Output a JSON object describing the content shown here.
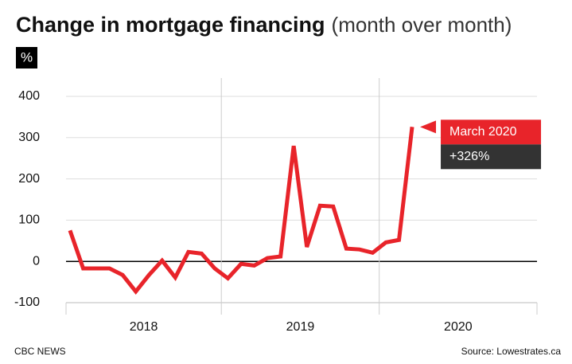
{
  "chart_data": {
    "type": "line",
    "title": "Change in mortgage financing",
    "subtitle": "(month over month)",
    "y_unit": "%",
    "categories": [
      null,
      null,
      null,
      null,
      null,
      null,
      null,
      null,
      null,
      null,
      null,
      null,
      null,
      null,
      null,
      null,
      null,
      null,
      null,
      null,
      null,
      null,
      null,
      null,
      null,
      null,
      null
    ],
    "x_groups": [
      "2018",
      "2019",
      "2020"
    ],
    "series": [
      {
        "name": "Change",
        "color": "#e8242a",
        "values": [
          75,
          -17,
          -17,
          -17,
          -33,
          -73,
          -33,
          2,
          -39,
          23,
          19,
          -17,
          -41,
          -6,
          -10,
          8,
          12,
          280,
          35,
          135,
          133,
          31,
          29,
          21,
          46,
          52,
          326
        ],
        "value_labels": [
          null,
          null,
          null,
          null,
          null,
          null,
          null,
          null,
          null,
          null,
          null,
          null,
          null,
          null,
          null,
          null,
          null,
          null,
          null,
          null,
          null,
          null,
          null,
          null,
          null,
          null,
          "+326%"
        ]
      }
    ],
    "annotation": "March 2020",
    "ylim": [
      -100,
      400
    ],
    "yticks": [
      -100,
      0,
      100,
      200,
      300,
      400
    ],
    "grid": true,
    "footer_left": "CBC NEWS",
    "footer_right": "Source:  Lowestrates.ca"
  }
}
